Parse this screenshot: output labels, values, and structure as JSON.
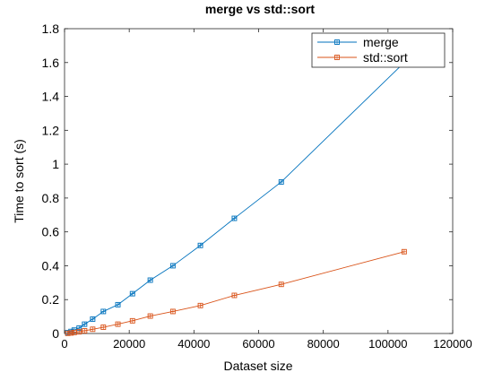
{
  "chart_data": {
    "type": "line",
    "title": "merge vs std::sort",
    "xlabel": "Dataset size",
    "ylabel": "Time to sort (s)",
    "xlim": [
      0,
      120000
    ],
    "ylim": [
      0,
      1.8
    ],
    "xticks": [
      0,
      20000,
      40000,
      60000,
      80000,
      100000,
      120000
    ],
    "xtick_labels": [
      "0",
      "20000",
      "40000",
      "60000",
      "80000",
      "100000",
      "120000"
    ],
    "yticks": [
      0,
      0.2,
      0.4,
      0.6,
      0.8,
      1.0,
      1.2,
      1.4,
      1.6,
      1.8
    ],
    "ytick_labels": [
      "0",
      "0.2",
      "0.4",
      "0.6",
      "0.8",
      "1",
      "1.2",
      "1.4",
      "1.6",
      "1.8"
    ],
    "grid": false,
    "legend_position": "top-right",
    "x": [
      1000,
      2000,
      3000,
      4500,
      6200,
      8700,
      12000,
      16500,
      21000,
      26500,
      33500,
      42000,
      52500,
      67000,
      105000
    ],
    "series": [
      {
        "name": "merge",
        "color": "#0072BD",
        "marker": "square",
        "values": [
          0.005,
          0.012,
          0.02,
          0.032,
          0.055,
          0.085,
          0.13,
          0.17,
          0.235,
          0.315,
          0.4,
          0.52,
          0.68,
          0.895,
          1.6
        ]
      },
      {
        "name": "std::sort",
        "color": "#D95319",
        "marker": "square",
        "values": [
          0.001,
          0.003,
          0.006,
          0.01,
          0.016,
          0.025,
          0.037,
          0.055,
          0.075,
          0.103,
          0.13,
          0.165,
          0.225,
          0.29,
          0.483
        ]
      }
    ]
  }
}
